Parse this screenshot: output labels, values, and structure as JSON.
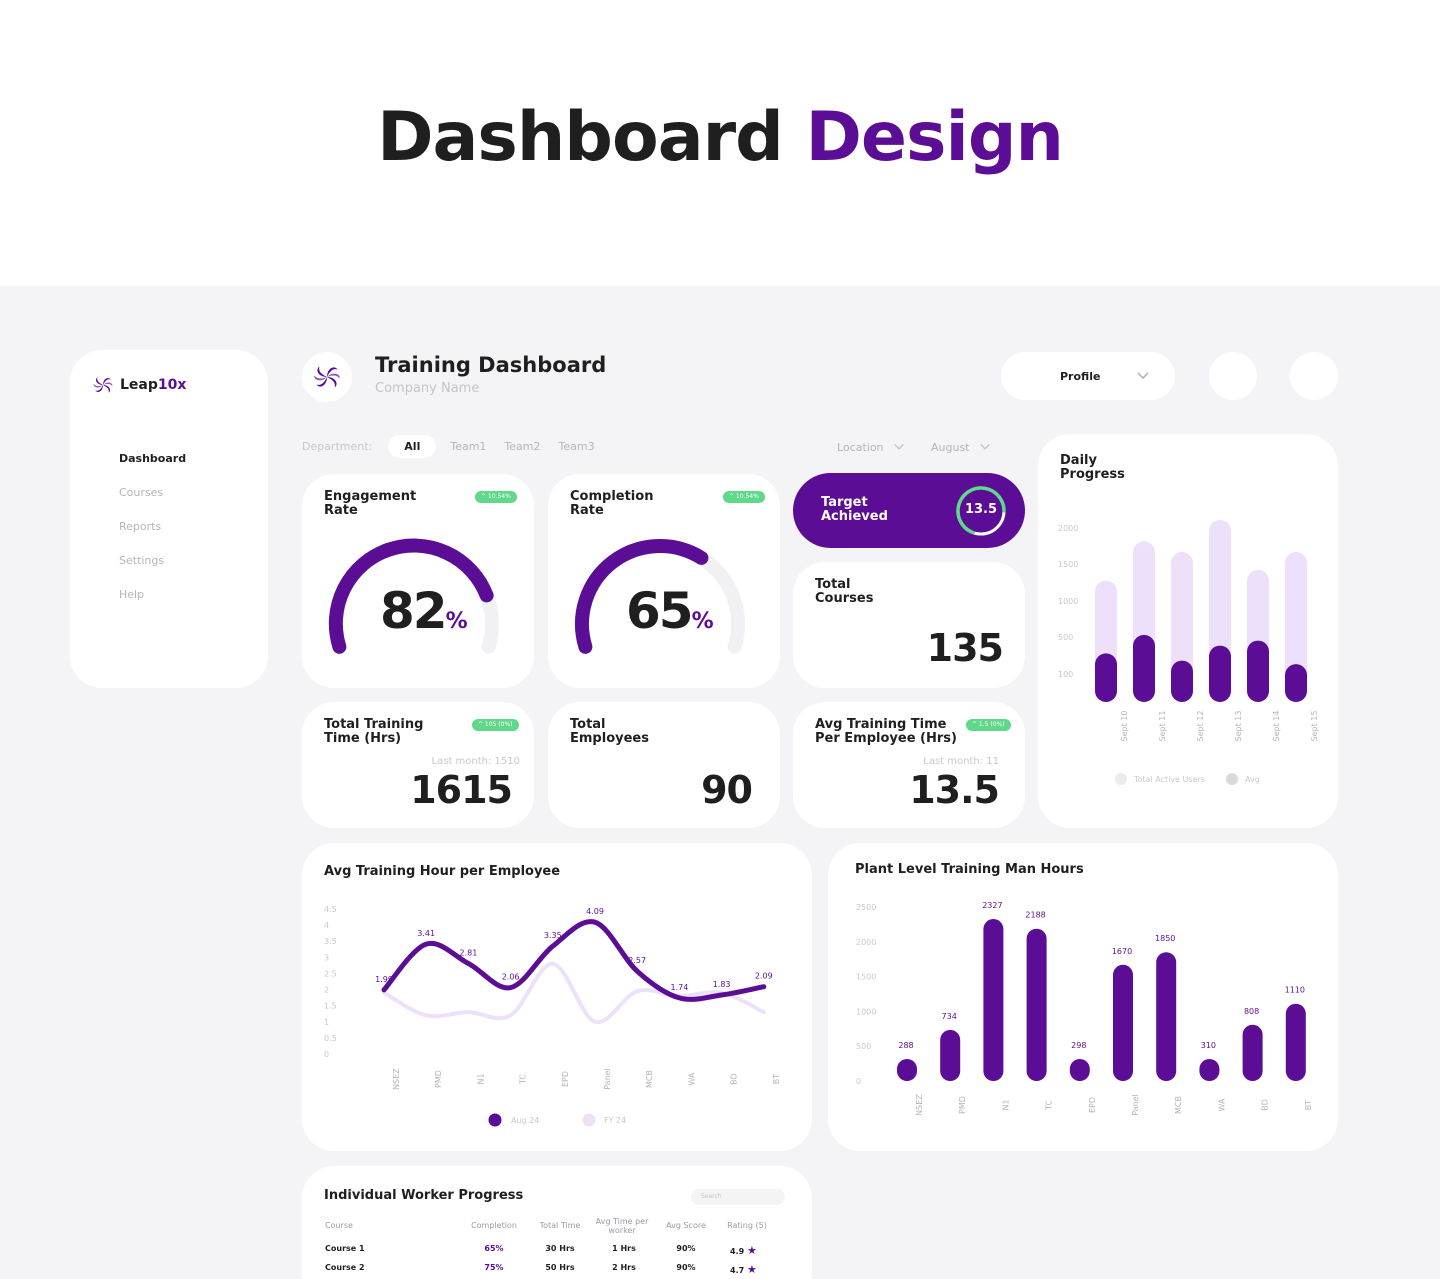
{
  "hero": {
    "title_main": "Dashboard",
    "title_accent": "Design"
  },
  "sidebar": {
    "brand_prefix": "Leap",
    "brand_suffix": "10x",
    "items": [
      {
        "label": "Dashboard",
        "active": true
      },
      {
        "label": "Courses",
        "active": false
      },
      {
        "label": "Reports",
        "active": false
      },
      {
        "label": "Settings",
        "active": false
      },
      {
        "label": "Help",
        "active": false
      }
    ]
  },
  "header": {
    "title": "Training Dashboard",
    "subtitle": "Company Name",
    "profile_label": "Profile"
  },
  "filters": {
    "department_label": "Department:",
    "chips": [
      "All",
      "Team1",
      "Team2",
      "Team3"
    ],
    "location_label": "Location",
    "month_label": "August"
  },
  "kpis": {
    "engagement": {
      "title_line1": "Engagement",
      "title_line2": "Rate",
      "value": "82",
      "unit": "%",
      "fraction": 0.82,
      "badge": "^ 10.54%"
    },
    "completion": {
      "title_line1": "Completion",
      "title_line2": "Rate",
      "value": "65",
      "unit": "%",
      "fraction": 0.65,
      "badge": "^ 10.54%"
    },
    "target": {
      "title_line1": "Target",
      "title_line2": "Achieved",
      "value": "13.5"
    },
    "total_courses": {
      "title_line1": "Total",
      "title_line2": "Courses",
      "value": "135"
    },
    "total_training_time": {
      "title_line1": "Total Training",
      "title_line2": "Time (Hrs)",
      "badge": "^ 105 (0%)",
      "last_month": "Last month: 1510",
      "value": "1615"
    },
    "total_employees": {
      "title_line1": "Total",
      "title_line2": "Employees",
      "value": "90"
    },
    "avg_training_time": {
      "title_line1": "Avg Training Time",
      "title_line2": "Per Employee (Hrs)",
      "badge": "^ 1.5 (0%)",
      "last_month": "Last month: 11",
      "value": "13.5"
    }
  },
  "colors": {
    "accent": "#5b0e95",
    "accent_light": "#ede0fb",
    "green": "#5fd88a",
    "background": "#f4f4f6"
  },
  "daily_progress": {
    "title_line1": "Daily",
    "title_line2": "Progress",
    "legend": [
      "Total Active Users",
      "Avg"
    ]
  },
  "avg_hour_chart": {
    "title": "Avg Training Hour per Employee",
    "legend": [
      "Aug 24",
      "FY 24"
    ]
  },
  "plant_chart": {
    "title": "Plant Level Training Man Hours"
  },
  "chart_data": [
    {
      "type": "bar",
      "title": "Daily Progress",
      "categories": [
        "Sept 10",
        "Sept 11",
        "Sept 12",
        "Sept 13",
        "Sept 14",
        "Sept 15"
      ],
      "y_ticks": [
        "2000",
        "1500",
        "1000",
        "500",
        "100"
      ],
      "series": [
        {
          "name": "Total Active Users",
          "values": [
            1700,
            2250,
            2100,
            2550,
            1850,
            2100
          ]
        },
        {
          "name": "Avg",
          "values": [
            680,
            940,
            580,
            790,
            860,
            530
          ]
        }
      ]
    },
    {
      "type": "line",
      "title": "Avg Training Hour per Employee",
      "categories": [
        "NSEZ",
        "PMD",
        "N1",
        "TC",
        "EPD",
        "Panel",
        "MCB",
        "WA",
        "BD",
        "BT"
      ],
      "ylim": [
        0,
        4.5
      ],
      "y_ticks": [
        "4.5",
        "4",
        "3.5",
        "3",
        "2.5",
        "2",
        "1.5",
        "1",
        "0.5",
        "0"
      ],
      "series": [
        {
          "name": "Aug 24",
          "values": [
            1.99,
            3.41,
            2.81,
            2.06,
            3.35,
            4.09,
            2.57,
            1.74,
            1.83,
            2.09
          ],
          "labels": [
            "1.99",
            "3.41",
            "2.81",
            "2.06",
            "3.35",
            "4.09",
            "2.57",
            "1.74",
            "1.83",
            "2.09"
          ]
        },
        {
          "name": "FY 24",
          "values": [
            1.9,
            1.2,
            1.3,
            1.2,
            2.8,
            1.0,
            1.95,
            1.8,
            1.9,
            1.3
          ]
        }
      ]
    },
    {
      "type": "bar",
      "title": "Plant Level Training Man Hours",
      "categories": [
        "NSEZ",
        "PMD",
        "N1",
        "TC",
        "EPD",
        "Panel",
        "MCB",
        "WA",
        "BD",
        "BT"
      ],
      "values": [
        288,
        734,
        2327,
        2188,
        298,
        1670,
        1850,
        310,
        808,
        1110
      ],
      "labels": [
        "288",
        "734",
        "2327",
        "2188",
        "298",
        "1670",
        "1850",
        "310",
        "808",
        "1110"
      ],
      "ylim": [
        0,
        2500
      ],
      "y_ticks": [
        "2500",
        "2000",
        "1500",
        "1000",
        "500",
        "0"
      ]
    }
  ],
  "worker_table": {
    "title": "Individual Worker Progress",
    "search_placeholder": "Search",
    "columns": [
      "Course",
      "Completion",
      "Total Time",
      "Avg Time per worker",
      "Avg Score",
      "Rating (5)"
    ],
    "rows": [
      {
        "course": "Course 1",
        "completion": "65%",
        "total_time": "30 Hrs",
        "avg_time": "1 Hrs",
        "avg_score": "90%",
        "rating": "4.9"
      },
      {
        "course": "Course 2",
        "completion": "75%",
        "total_time": "50 Hrs",
        "avg_time": "2 Hrs",
        "avg_score": "90%",
        "rating": "4.7"
      }
    ]
  }
}
